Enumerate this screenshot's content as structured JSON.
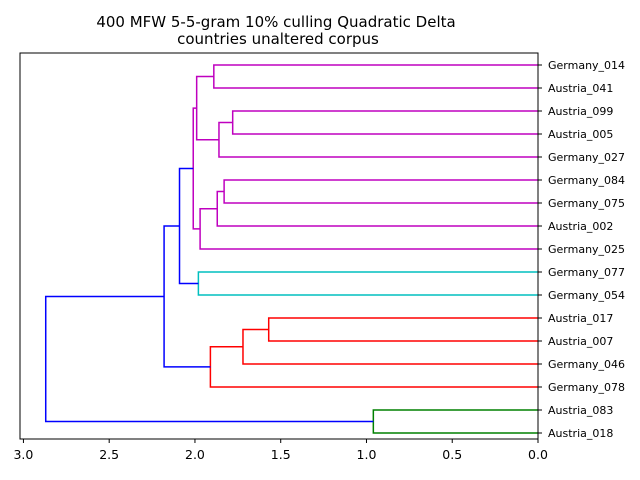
{
  "chart_data": {
    "type": "dendrogram",
    "title_lines": [
      "400 MFW 5-5-gram 10% culling Quadratic Delta",
      "countries unaltered corpus"
    ],
    "orientation": "left",
    "xlim": [
      3.02,
      0.0
    ],
    "xticks": [
      3.0,
      2.5,
      2.0,
      1.5,
      1.0,
      0.5,
      0.0
    ],
    "xtick_labels": [
      "3.0",
      "2.5",
      "2.0",
      "1.5",
      "1.0",
      "0.5",
      "0.0"
    ],
    "leaves": [
      "Germany_014",
      "Austria_041",
      "Austria_099",
      "Austria_005",
      "Germany_027",
      "Germany_084",
      "Germany_075",
      "Austria_002",
      "Germany_025",
      "Germany_077",
      "Germany_054",
      "Austria_017",
      "Austria_007",
      "Germany_046",
      "Germany_078",
      "Austria_083",
      "Austria_018"
    ],
    "links": [
      {
        "left": 0,
        "right": 1,
        "height": 1.89,
        "color": "#bf00bf"
      },
      {
        "left": 2,
        "right": 3,
        "height": 1.78,
        "color": "#bf00bf"
      },
      {
        "left": "n2",
        "right": 4,
        "height": 1.86,
        "color": "#bf00bf"
      },
      {
        "left": "n1",
        "right": "n3",
        "height": 1.99,
        "color": "#bf00bf"
      },
      {
        "left": 5,
        "right": 6,
        "height": 1.83,
        "color": "#bf00bf"
      },
      {
        "left": "n5",
        "right": 7,
        "height": 1.87,
        "color": "#bf00bf"
      },
      {
        "left": "n6",
        "right": 8,
        "height": 1.97,
        "color": "#bf00bf"
      },
      {
        "left": "n4",
        "right": "n7",
        "height": 2.01,
        "color": "#bf00bf"
      },
      {
        "left": 9,
        "right": 10,
        "height": 1.98,
        "color": "#00bfbf"
      },
      {
        "left": "n8",
        "right": "n9",
        "height": 2.09,
        "color": "#0000ff"
      },
      {
        "left": 11,
        "right": 12,
        "height": 1.57,
        "color": "#ff0000"
      },
      {
        "left": "n11",
        "right": 13,
        "height": 1.72,
        "color": "#ff0000"
      },
      {
        "left": "n12",
        "right": 14,
        "height": 1.91,
        "color": "#ff0000"
      },
      {
        "left": "n10",
        "right": "n13",
        "height": 2.18,
        "color": "#0000ff"
      },
      {
        "left": 15,
        "right": 16,
        "height": 0.96,
        "color": "#008000"
      },
      {
        "left": "n14",
        "right": "n15",
        "height": 2.87,
        "color": "#0000ff"
      }
    ]
  }
}
